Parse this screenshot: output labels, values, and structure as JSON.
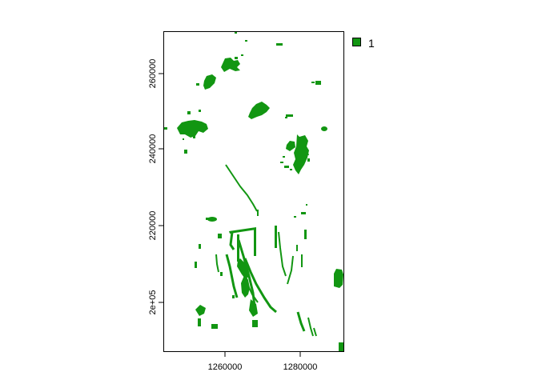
{
  "chart_data": {
    "type": "raster-map",
    "title": "",
    "xlabel": "",
    "ylabel": "",
    "x_ticks": [
      "1260000",
      "1280000"
    ],
    "y_ticks": [
      "200000",
      "220000",
      "240000",
      "260000"
    ],
    "y_tick_labels": [
      "2e+05",
      "220000",
      "240000",
      "260000"
    ],
    "legend": [
      {
        "value": "1",
        "color": "#129612"
      }
    ],
    "fill_color": "#129612",
    "background": "#ffffff"
  }
}
